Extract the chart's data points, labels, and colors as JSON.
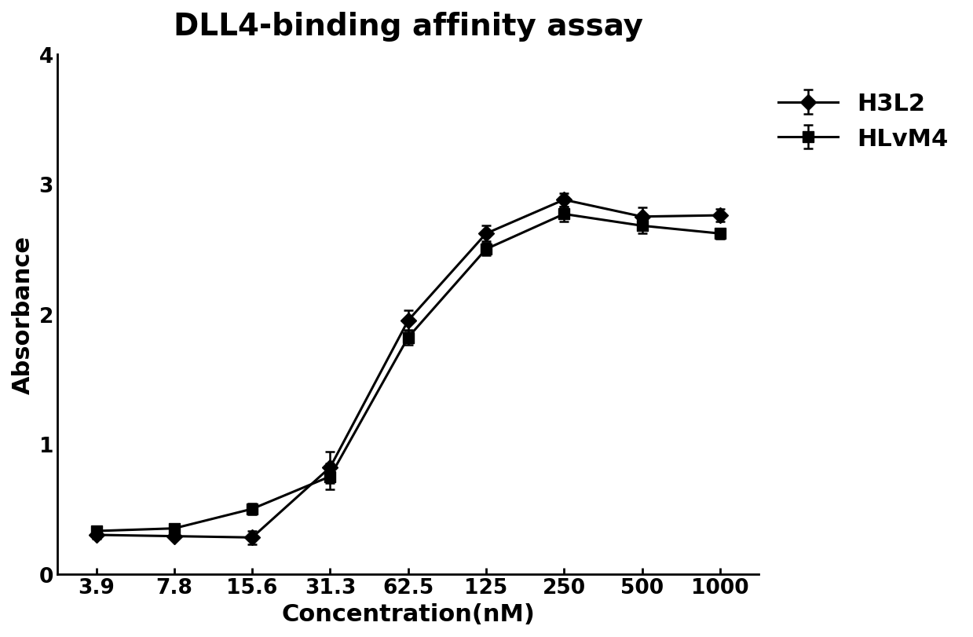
{
  "title": "DLL4-binding affinity assay",
  "xlabel": "Concentration(nM)",
  "ylabel": "Absorbance",
  "x_labels": [
    "3.9",
    "7.8",
    "15.6",
    "31.3",
    "62.5",
    "125",
    "250",
    "500",
    "1000"
  ],
  "x_values": [
    3.9,
    7.8,
    15.6,
    31.3,
    62.5,
    125,
    250,
    500,
    1000
  ],
  "H3L2_y": [
    0.3,
    0.29,
    0.28,
    0.82,
    1.95,
    2.62,
    2.88,
    2.75,
    2.76
  ],
  "H3L2_err": [
    0.03,
    0.02,
    0.05,
    0.12,
    0.08,
    0.06,
    0.05,
    0.07,
    0.05
  ],
  "HLvM4_y": [
    0.33,
    0.35,
    0.5,
    0.75,
    1.82,
    2.5,
    2.77,
    2.68,
    2.62
  ],
  "HLvM4_err": [
    0.03,
    0.02,
    0.04,
    0.1,
    0.06,
    0.05,
    0.06,
    0.06,
    0.04
  ],
  "color": "#000000",
  "ylim": [
    0,
    4
  ],
  "yticks": [
    0,
    1,
    2,
    3,
    4
  ],
  "legend_labels": [
    "H3L2",
    "HLvM4"
  ],
  "title_fontsize": 28,
  "axis_label_fontsize": 22,
  "tick_fontsize": 19,
  "legend_fontsize": 22,
  "linewidth": 2.2,
  "markersize": 10,
  "capsize": 4,
  "background_color": "#ffffff"
}
